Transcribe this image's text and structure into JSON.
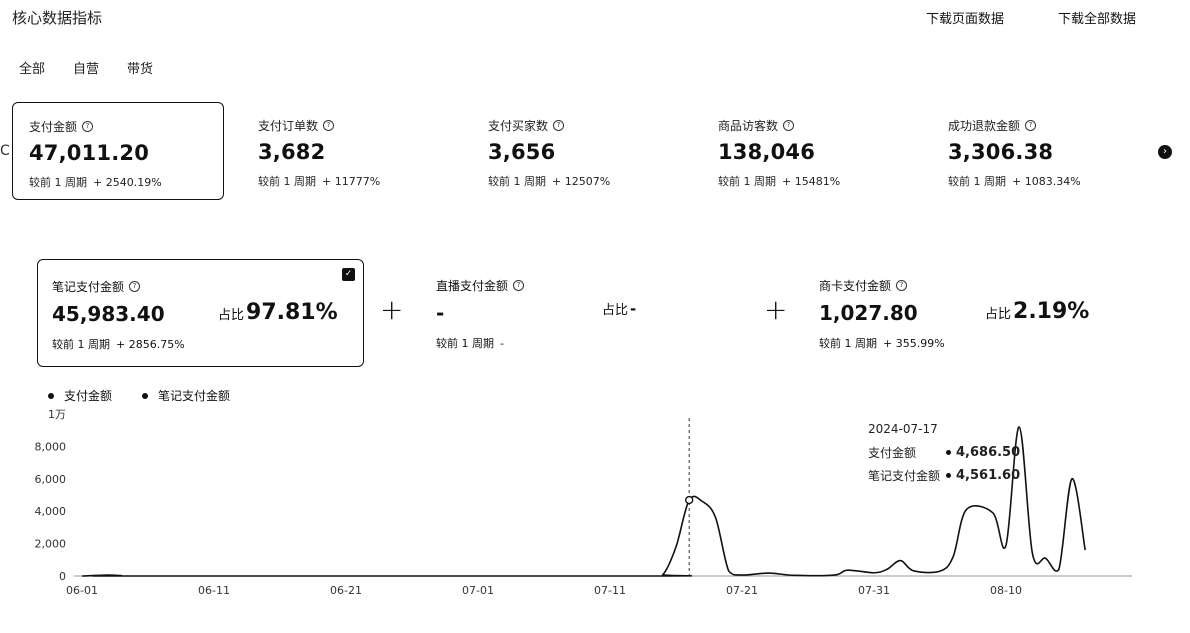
{
  "header": {
    "title": "核心数据指标",
    "download_page": "下载页面数据",
    "download_all": "下载全部数据"
  },
  "tabs": [
    "全部",
    "自营",
    "带货"
  ],
  "metrics": [
    {
      "label": "支付金额",
      "value": "47,011.20",
      "compare_label": "较前 1 周期",
      "compare_value": "+ 2540.19%",
      "active": true
    },
    {
      "label": "支付订单数",
      "value": "3,682",
      "compare_label": "较前 1 周期",
      "compare_value": "+ 11777%"
    },
    {
      "label": "支付买家数",
      "value": "3,656",
      "compare_label": "较前 1 周期",
      "compare_value": "+ 12507%"
    },
    {
      "label": "商品访客数",
      "value": "138,046",
      "compare_label": "较前 1 周期",
      "compare_value": "+ 15481%"
    },
    {
      "label": "成功退款金额",
      "value": "3,306.38",
      "compare_label": "较前 1 周期",
      "compare_value": "+ 1083.34%"
    }
  ],
  "left_edge_glyph": "C",
  "next_icon": "chevron-right-circle-icon",
  "split": [
    {
      "label": "笔记支付金额",
      "value": "45,983.40",
      "share_label": "占比",
      "share_value": "97.81%",
      "compare_label": "较前 1 周期",
      "compare_value": "+ 2856.75%",
      "active": true
    },
    {
      "label": "直播支付金额",
      "value": "-",
      "share_label": "占比",
      "share_value": "-",
      "compare_label": "较前 1 周期",
      "compare_value": "-"
    },
    {
      "label": "商卡支付金额",
      "value": "1,027.80",
      "share_label": "占比",
      "share_value": "2.19%",
      "compare_label": "较前 1 周期",
      "compare_value": "+ 355.99%"
    }
  ],
  "legend": [
    "支付金额",
    "笔记支付金额"
  ],
  "tooltip": {
    "date": "2024-07-17",
    "rows": [
      {
        "name": "支付金额",
        "value": "4,686.50"
      },
      {
        "name": "笔记支付金额",
        "value": "4,561.60"
      }
    ]
  },
  "chart_data": {
    "type": "line",
    "y_ticks": [
      "0",
      "2,000",
      "4,000",
      "6,000",
      "8,000",
      "1万"
    ],
    "ylim": [
      0,
      10000
    ],
    "x_tick_labels": [
      "06-01",
      "06-11",
      "06-21",
      "07-01",
      "07-11",
      "07-21",
      "07-31",
      "08-10"
    ],
    "x_range": [
      "06-01",
      "08-15"
    ],
    "hover_date": "07-17",
    "series": [
      {
        "name": "支付金额",
        "points": [
          [
            "06-01",
            0
          ],
          [
            "06-03",
            60
          ],
          [
            "06-04",
            20
          ],
          [
            "06-05",
            0
          ],
          [
            "07-14",
            0
          ],
          [
            "07-15",
            80
          ],
          [
            "07-16",
            1800
          ],
          [
            "07-17",
            4687
          ],
          [
            "07-18",
            4600
          ],
          [
            "07-19",
            3600
          ],
          [
            "07-20",
            300
          ],
          [
            "07-21",
            60
          ],
          [
            "07-23",
            180
          ],
          [
            "07-25",
            40
          ],
          [
            "07-28",
            60
          ],
          [
            "07-29",
            360
          ],
          [
            "07-31",
            200
          ],
          [
            "08-01",
            420
          ],
          [
            "08-02",
            950
          ],
          [
            "08-03",
            320
          ],
          [
            "08-05",
            300
          ],
          [
            "08-06",
            1200
          ],
          [
            "08-07",
            4100
          ],
          [
            "08-09",
            3900
          ],
          [
            "08-10",
            1900
          ],
          [
            "08-11",
            9200
          ],
          [
            "08-12",
            1400
          ],
          [
            "08-13",
            1100
          ],
          [
            "08-14",
            400
          ],
          [
            "08-15",
            6000
          ],
          [
            "08-16",
            1600
          ]
        ]
      }
    ]
  }
}
